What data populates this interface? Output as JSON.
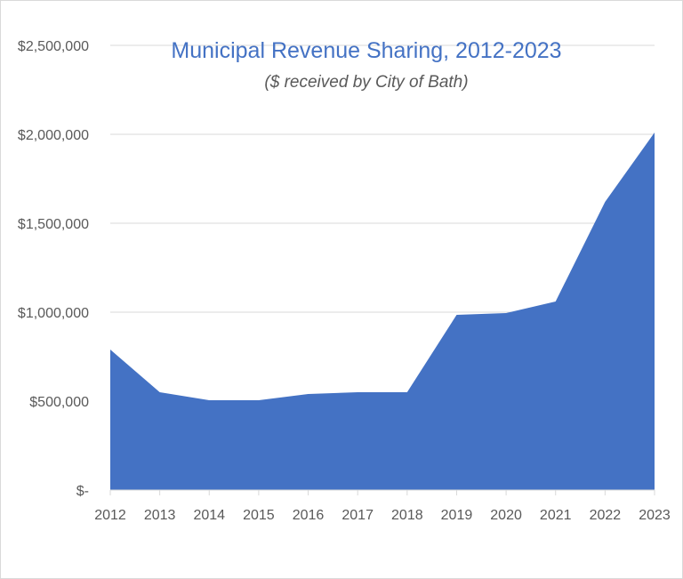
{
  "chart_data": {
    "type": "area",
    "title": "Municipal Revenue Sharing, 2012-2023",
    "subtitle": "($ received by City of Bath)",
    "xlabel": "",
    "ylabel": "",
    "categories": [
      "2012",
      "2013",
      "2014",
      "2015",
      "2016",
      "2017",
      "2018",
      "2019",
      "2020",
      "2021",
      "2022",
      "2023"
    ],
    "values": [
      790000,
      550000,
      505000,
      505000,
      540000,
      550000,
      550000,
      985000,
      995000,
      1060000,
      1620000,
      2010000
    ],
    "ylim": [
      0,
      2500000
    ],
    "y_ticks": [
      0,
      500000,
      1000000,
      1500000,
      2000000,
      2500000
    ],
    "y_tick_labels": [
      "$-",
      "$500,000",
      "$1,000,000",
      "$1,500,000",
      "$2,000,000",
      "$2,500,000"
    ],
    "grid": true,
    "legend": "none",
    "colors": {
      "fill": "#4472c4",
      "title": "#4472c4",
      "grid": "#d9d9d9",
      "text": "#595959"
    }
  }
}
